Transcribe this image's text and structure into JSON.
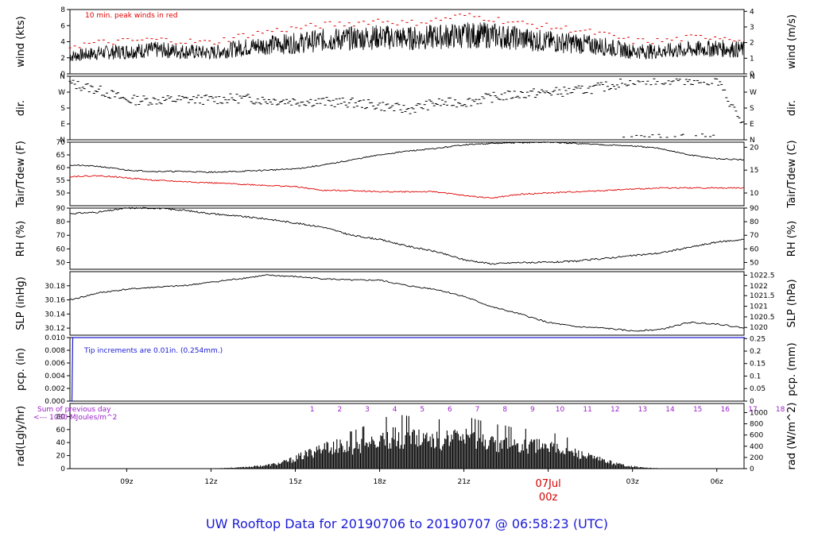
{
  "title": "UW Rooftop Data for 20190706  to  20190707 @ 06:58:23  (UTC)",
  "colors": {
    "primary": "#000000",
    "peak": "#e00000",
    "precip": "#1a1ad6",
    "rad_note": "#9a22c8",
    "date": "#d40000"
  },
  "x_axis": {
    "ticks": [
      {
        "label": "09z",
        "hour": 9
      },
      {
        "label": "12z",
        "hour": 12
      },
      {
        "label": "15z",
        "hour": 15
      },
      {
        "label": "18z",
        "hour": 18
      },
      {
        "label": "21z",
        "hour": 21
      },
      {
        "label": "00z",
        "hour": 24,
        "date": "07Jul"
      },
      {
        "label": "03z",
        "hour": 27
      },
      {
        "label": "06z",
        "hour": 30
      }
    ],
    "start_hour": 6.98,
    "end_hour": 30.97
  },
  "chart_data": [
    {
      "type": "line",
      "panel": "wind",
      "ylabel": "wind (kts)",
      "ylabel_right": "wind (m/s)",
      "ylim": [
        0,
        8
      ],
      "yticks_left": [
        0,
        2,
        4,
        6,
        8
      ],
      "yticks_right": [
        {
          "label": "0",
          "kts": 0
        },
        {
          "label": "1",
          "kts": 1.944
        },
        {
          "label": "2",
          "kts": 3.888
        },
        {
          "label": "3",
          "kts": 5.832
        },
        {
          "label": "4",
          "kts": 7.776
        }
      ],
      "annotation": "10 min. peak winds in red",
      "series": [
        {
          "x": [
            7,
            8,
            9,
            10,
            11,
            12,
            13,
            14,
            15,
            16,
            17,
            18,
            19,
            20,
            21,
            22,
            23,
            24,
            25,
            26,
            27,
            28,
            29,
            30,
            31
          ],
          "y": [
            2.2,
            2.6,
            2.8,
            3.0,
            2.8,
            2.6,
            3.2,
            3.6,
            3.8,
            4.2,
            4.4,
            4.6,
            4.4,
            4.6,
            4.8,
            4.8,
            4.4,
            4.0,
            3.8,
            3.4,
            2.8,
            2.8,
            3.0,
            3.2,
            3.0
          ]
        },
        {
          "x": [
            7,
            8,
            9,
            10,
            11,
            12,
            13,
            14,
            15,
            16,
            17,
            18,
            19,
            20,
            21,
            22,
            23,
            24,
            25,
            26,
            27,
            28,
            29,
            30,
            31
          ],
          "y": [
            3.4,
            3.8,
            4.0,
            4.2,
            4.0,
            3.8,
            4.6,
            5.2,
            5.6,
            6.0,
            6.2,
            6.6,
            6.2,
            6.6,
            7.2,
            6.8,
            6.2,
            5.8,
            5.4,
            4.8,
            4.0,
            4.0,
            4.4,
            4.6,
            4.2
          ]
        }
      ]
    },
    {
      "type": "scatter",
      "panel": "dir",
      "ylabel": "dir.",
      "ylabel_right": "dir.",
      "ylim": [
        0,
        360
      ],
      "yticks": [
        {
          "label": "N",
          "v": 0
        },
        {
          "label": "E",
          "v": 90
        },
        {
          "label": "S",
          "v": 180
        },
        {
          "label": "W",
          "v": 270
        },
        {
          "label": "N",
          "v": 360
        }
      ],
      "series": [
        {
          "x": [
            7,
            8,
            9,
            10,
            11,
            12,
            13,
            14,
            15,
            16,
            17,
            18,
            19,
            20,
            21,
            22,
            23,
            24,
            25,
            26,
            27,
            28,
            29,
            30,
            31
          ],
          "y": [
            330,
            290,
            230,
            228,
            232,
            232,
            240,
            228,
            222,
            218,
            212,
            195,
            170,
            210,
            215,
            245,
            265,
            275,
            285,
            310,
            350,
            350,
            352,
            350,
            60
          ]
        }
      ]
    },
    {
      "type": "line",
      "panel": "temp",
      "ylabel": "Tair/Tdew (F)",
      "ylabel_right": "Tair/Tdew (C)",
      "ylim": [
        45,
        70
      ],
      "yticks_left": [
        50,
        55,
        60,
        65,
        70
      ],
      "yticks_right": [
        {
          "label": "10",
          "f": 50
        },
        {
          "label": "15",
          "f": 59
        },
        {
          "label": "20",
          "f": 68
        }
      ],
      "series": [
        {
          "x": [
            7,
            8,
            9,
            10,
            11,
            12,
            13,
            14,
            15,
            16,
            17,
            18,
            19,
            20,
            21,
            22,
            23,
            24,
            25,
            26,
            27,
            28,
            29,
            30,
            31
          ],
          "y": [
            61,
            60.5,
            59,
            58.5,
            58.5,
            58.2,
            58.5,
            59,
            59.5,
            61,
            63,
            65,
            66.5,
            67.5,
            69,
            69.5,
            69.8,
            70,
            69.5,
            69,
            68.5,
            67.5,
            65,
            63.5,
            63
          ]
        },
        {
          "x": [
            7,
            8,
            9,
            10,
            11,
            12,
            13,
            14,
            15,
            16,
            17,
            18,
            19,
            20,
            21,
            22,
            23,
            24,
            25,
            26,
            27,
            28,
            29,
            30,
            31
          ],
          "y": [
            56.5,
            56.8,
            56,
            55,
            54.5,
            54,
            53.5,
            53,
            52.5,
            51,
            51,
            50.5,
            50.5,
            50.5,
            49,
            48,
            49.5,
            50,
            50.5,
            51,
            51.5,
            52,
            52,
            52,
            52
          ]
        }
      ]
    },
    {
      "type": "line",
      "panel": "rh",
      "ylabel": "RH (%)",
      "ylabel_right": "RH (%)",
      "ylim": [
        45,
        90
      ],
      "yticks": [
        50,
        60,
        70,
        80,
        90
      ],
      "series": [
        {
          "x": [
            7,
            8,
            9,
            10,
            11,
            12,
            13,
            14,
            15,
            16,
            17,
            18,
            19,
            20,
            21,
            22,
            23,
            24,
            25,
            26,
            27,
            28,
            29,
            30,
            31
          ],
          "y": [
            86,
            87,
            90,
            90,
            88.5,
            86,
            84,
            82,
            79,
            76,
            70,
            67,
            62,
            58,
            52,
            49,
            50,
            50,
            51,
            53,
            55,
            57,
            61,
            65,
            67
          ]
        }
      ]
    },
    {
      "type": "line",
      "panel": "slp",
      "ylabel": "SLP (inHg)",
      "ylabel_right": "SLP (hPa)",
      "ylim": [
        30.11,
        30.2
      ],
      "yticks_left": [
        30.12,
        30.14,
        30.16,
        30.18
      ],
      "yticks_right": [
        {
          "label": "1020",
          "inhg": 30.121
        },
        {
          "label": "1020.5",
          "inhg": 30.136
        },
        {
          "label": "1021",
          "inhg": 30.151
        },
        {
          "label": "1021.5",
          "inhg": 30.166
        },
        {
          "label": "1022",
          "inhg": 30.18
        },
        {
          "label": "1022.5",
          "inhg": 30.195
        }
      ],
      "series": [
        {
          "x": [
            7,
            8,
            9,
            10,
            11,
            12,
            13,
            14,
            15,
            16,
            17,
            18,
            19,
            20,
            21,
            22,
            23,
            24,
            25,
            26,
            27,
            28,
            29,
            30,
            31
          ],
          "y": [
            30.16,
            30.17,
            30.175,
            30.178,
            30.18,
            30.185,
            30.19,
            30.195,
            30.193,
            30.19,
            30.188,
            30.188,
            30.18,
            30.175,
            30.165,
            30.15,
            30.14,
            30.128,
            30.122,
            30.12,
            30.116,
            30.118,
            30.128,
            30.126,
            30.12
          ]
        }
      ]
    },
    {
      "type": "line",
      "panel": "pcp",
      "ylabel": "pcp. (in)",
      "ylabel_right": "pcp. (mm)",
      "ylim": [
        0,
        0.01
      ],
      "yticks_left": [
        {
          "label": "0.000",
          "v": 0
        },
        {
          "label": "0.002",
          "v": 0.002
        },
        {
          "label": "0.004",
          "v": 0.004
        },
        {
          "label": "0.006",
          "v": 0.006
        },
        {
          "label": "0.008",
          "v": 0.008
        },
        {
          "label": "0.010",
          "v": 0.01
        }
      ],
      "yticks_right": [
        {
          "label": "0",
          "in": 0
        },
        {
          "label": "0.05",
          "in": 0.00197
        },
        {
          "label": "0.1",
          "in": 0.00394
        },
        {
          "label": "0.15",
          "in": 0.00591
        },
        {
          "label": "0.2",
          "in": 0.00787
        },
        {
          "label": "0.25",
          "in": 0.00984
        }
      ],
      "annotation": "Tip increments are 0.01in. (0.254mm.)",
      "series": [
        {
          "x": [
            7.0,
            7.05,
            7.08,
            31
          ],
          "y": [
            0,
            0,
            0.01,
            0.01
          ]
        }
      ]
    },
    {
      "type": "area",
      "panel": "rad",
      "ylabel": "rad(Lgly/hr)",
      "ylabel_right": "rad (W/m^2)",
      "ylim": [
        0,
        100
      ],
      "yticks_left": [
        0,
        20,
        40,
        60,
        80
      ],
      "yticks_left_labels": [
        "0",
        "20",
        "40",
        "60",
        "80"
      ],
      "yticks_right": [
        {
          "label": "0",
          "lgly": 0
        },
        {
          "label": "200",
          "lgly": 17.2
        },
        {
          "label": "400",
          "lgly": 34.4
        },
        {
          "label": "600",
          "lgly": 51.6
        },
        {
          "label": "800",
          "lgly": 68.8
        },
        {
          "label": "1000",
          "lgly": 86.0
        }
      ],
      "note_sum_label": "Sum of previous day",
      "note_sum_value": "<--- 1080  MJoules/m^2",
      "hour_numbers": [
        "1",
        "2",
        "3",
        "4",
        "5",
        "6",
        "7",
        "8",
        "9",
        "10",
        "11",
        "12",
        "13",
        "14",
        "15",
        "16",
        "17",
        "18"
      ],
      "series": [
        {
          "x": [
            7,
            11.8,
            12,
            13,
            14,
            14.5,
            15,
            15.5,
            16,
            16.5,
            17,
            17.5,
            18,
            18.5,
            19,
            19.5,
            20,
            20.5,
            21,
            21.5,
            22,
            22.5,
            23,
            23.5,
            24,
            24.5,
            25,
            25.5,
            26,
            26.5,
            27,
            27.5,
            28,
            28.5,
            29,
            31
          ],
          "y": [
            0,
            0,
            0.5,
            2,
            6,
            10,
            18,
            28,
            36,
            40,
            38,
            44,
            50,
            56,
            54,
            52,
            50,
            52,
            54,
            50,
            46,
            44,
            40,
            42,
            38,
            34,
            28,
            20,
            14,
            8,
            4,
            1.5,
            0.5,
            0,
            0,
            0
          ]
        }
      ]
    }
  ]
}
